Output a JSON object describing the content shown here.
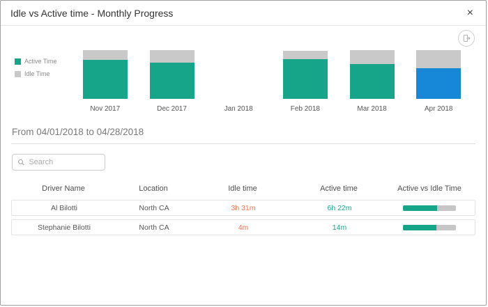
{
  "dialog": {
    "title": "Idle vs Active time - Monthly Progress",
    "close_label": "×"
  },
  "chart_data": {
    "type": "bar",
    "stacked": true,
    "title": "",
    "categories": [
      "Nov 2017",
      "Dec 2017",
      "Jan 2018",
      "Feb 2018",
      "Mar 2018",
      "Apr 2018"
    ],
    "series": [
      {
        "name": "Active Time",
        "color": "#17A589",
        "values": [
          75,
          70,
          0,
          76,
          67,
          59
        ]
      },
      {
        "name": "Idle Time",
        "color": "#C9C9C9",
        "values": [
          19,
          24,
          0,
          16,
          27,
          35
        ]
      }
    ],
    "values_unit": "percent of plot height (no value axis shown in chart)",
    "selected_category": "Apr 2018",
    "selected_color": "#1787D8",
    "legend_position": "left",
    "grid": false
  },
  "range": {
    "text": "From 04/01/2018 to 04/28/2018"
  },
  "search": {
    "placeholder": "Search"
  },
  "table": {
    "columns": [
      "Driver Name",
      "Location",
      "Idle time",
      "Active time",
      "Active vs Idle Time"
    ],
    "rows": [
      {
        "driver": "Al Bilotti",
        "location": "North CA",
        "idle": "3h 31m",
        "active": "6h 22m",
        "active_pct": 65
      },
      {
        "driver": "Stephanie Bilotti",
        "location": "North CA",
        "idle": "4m",
        "active": "14m",
        "active_pct": 63
      }
    ]
  },
  "colors": {
    "active": "#17A589",
    "idle": "#C9C9C9",
    "selected_blue": "#1787D8",
    "idle_text": "#E8744F",
    "active_text": "#17A589",
    "progress_track": "#C6C6C6"
  }
}
